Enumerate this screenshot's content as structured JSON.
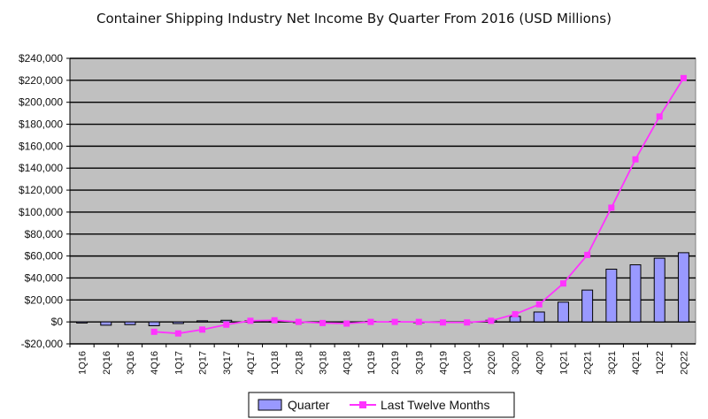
{
  "chart_data": {
    "type": "bar",
    "title": "Container Shipping Industry Net Income By Quarter From 2016 (USD Millions)",
    "categories": [
      "1Q16",
      "2Q16",
      "3Q16",
      "4Q16",
      "1Q17",
      "2Q17",
      "3Q17",
      "4Q17",
      "1Q18",
      "2Q18",
      "3Q18",
      "4Q18",
      "1Q19",
      "2Q19",
      "3Q19",
      "4Q19",
      "1Q20",
      "2Q20",
      "3Q20",
      "4Q20",
      "1Q21",
      "2Q21",
      "3Q21",
      "4Q21",
      "1Q22",
      "2Q22"
    ],
    "ylim": [
      -20000,
      240000
    ],
    "yticks": [
      -20000,
      0,
      20000,
      40000,
      60000,
      80000,
      100000,
      120000,
      140000,
      160000,
      180000,
      200000,
      220000,
      240000
    ],
    "ytick_labels": [
      "-$20,000",
      "$0",
      "$20,000",
      "$40,000",
      "$60,000",
      "$80,000",
      "$100,000",
      "$120,000",
      "$140,000",
      "$160,000",
      "$180,000",
      "$200,000",
      "$220,000",
      "$240,000"
    ],
    "grid": true,
    "legend_position": "bottom",
    "series": [
      {
        "name": "Quarter",
        "kind": "bar",
        "color": "#9999ff",
        "values": [
          -1000,
          -3000,
          -2500,
          -3500,
          -1500,
          1000,
          1500,
          1000,
          500,
          -500,
          -1000,
          -1000,
          500,
          500,
          -500,
          -500,
          -500,
          1500,
          5000,
          9000,
          18000,
          29000,
          48000,
          52000,
          58000,
          63000
        ]
      },
      {
        "name": "Last Twelve Months",
        "kind": "line",
        "color": "#ff33ff",
        "values": [
          null,
          null,
          null,
          -9000,
          -10500,
          -7000,
          -2500,
          1000,
          1500,
          0,
          -1000,
          -1500,
          0,
          0,
          0,
          -500,
          -500,
          1000,
          7000,
          16000,
          35000,
          61000,
          104000,
          148000,
          187000,
          222000
        ]
      }
    ]
  }
}
